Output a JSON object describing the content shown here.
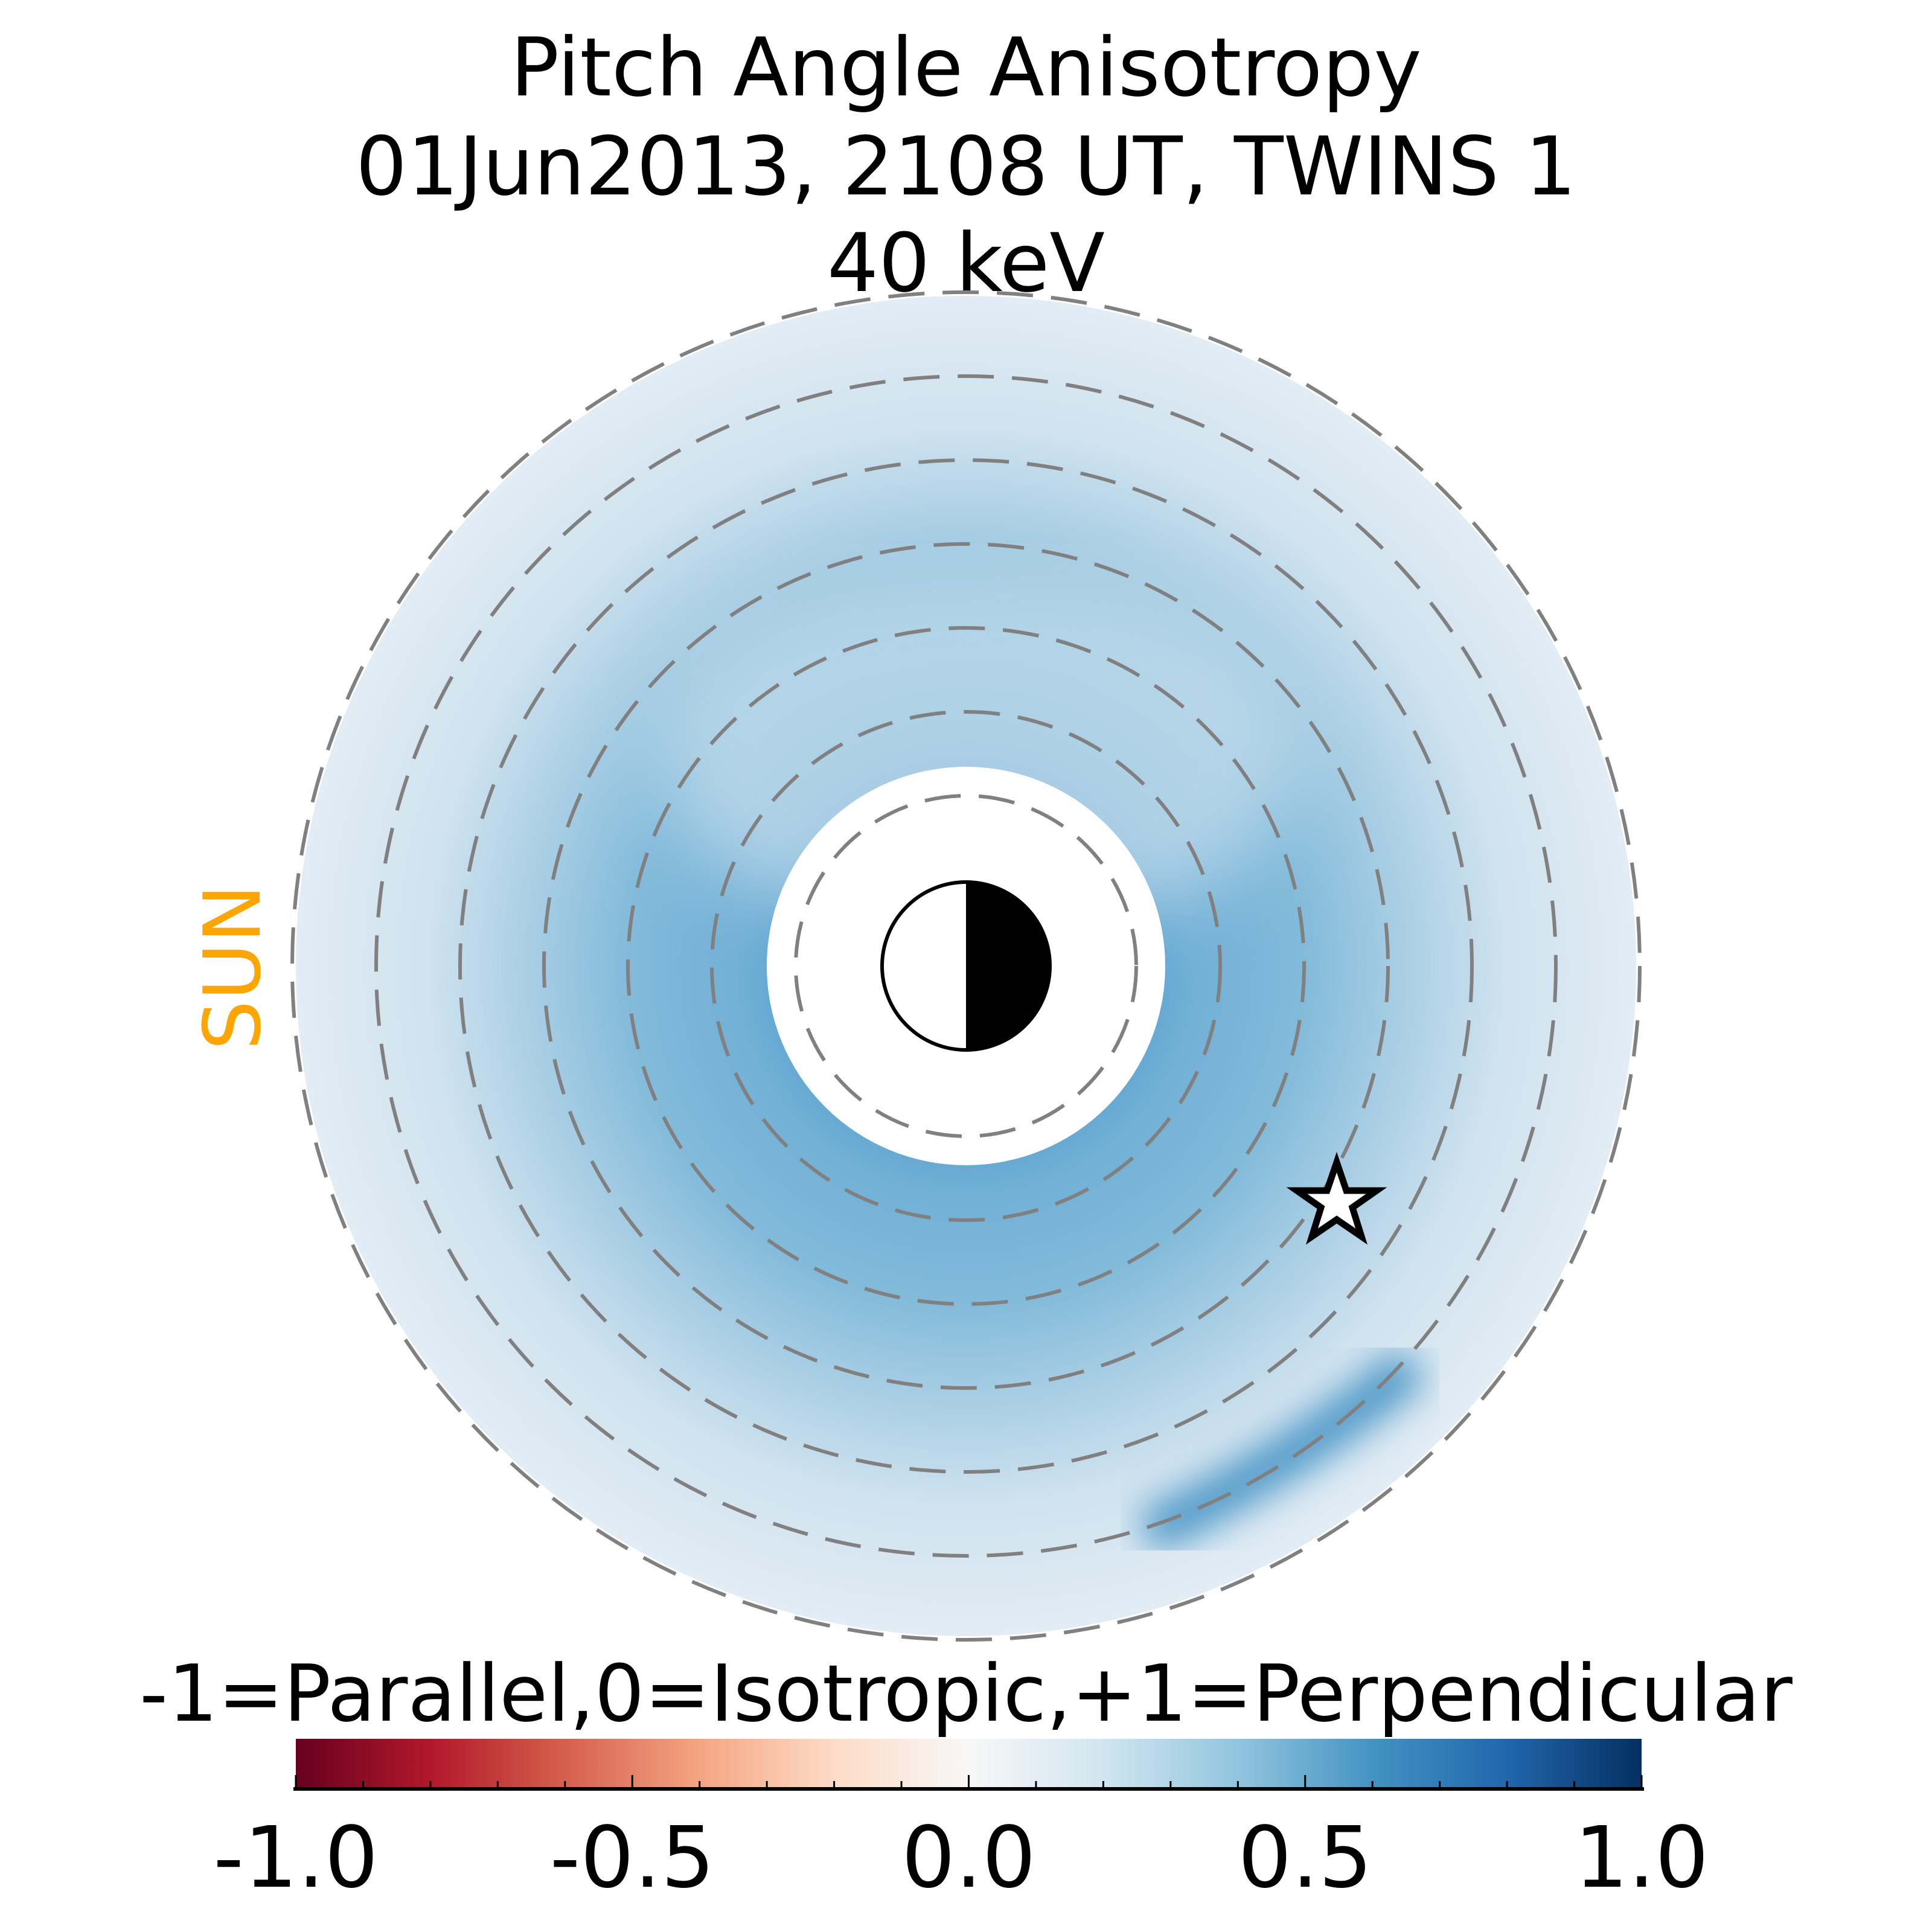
{
  "chart_data": {
    "type": "heatmap",
    "projection": "polar",
    "title": [
      "Pitch Angle Anisotropy",
      "01Jun2013, 2108 UT,  TWINS 1",
      "40 keV"
    ],
    "sun_label": "SUN",
    "colorbar": {
      "label": "-1=Parallel,0=Isotropic,+1=Perpendicular",
      "range": [
        -1.0,
        1.0
      ],
      "ticks": [
        -1.0,
        -0.5,
        0.0,
        0.5,
        1.0
      ],
      "tick_labels": [
        "-1.0",
        "-0.5",
        "0.0",
        "0.5",
        "1.0"
      ],
      "minor_step": 0.1,
      "colormap": "RdBu",
      "colors": [
        "#67001f",
        "#b2182b",
        "#d6604d",
        "#f4a582",
        "#fddbc7",
        "#f7f7f7",
        "#d1e5f0",
        "#92c5de",
        "#4393c3",
        "#2166ac",
        "#053061"
      ]
    },
    "dashed_rings_count": 7,
    "markers": [
      {
        "type": "star",
        "label": "spacecraft"
      },
      {
        "type": "earth",
        "label": "earth (day/night)"
      }
    ],
    "approx_values": {
      "inner_ring": 0.4,
      "outer_region": 0.1,
      "dusk_arc_peak": 0.55
    }
  }
}
